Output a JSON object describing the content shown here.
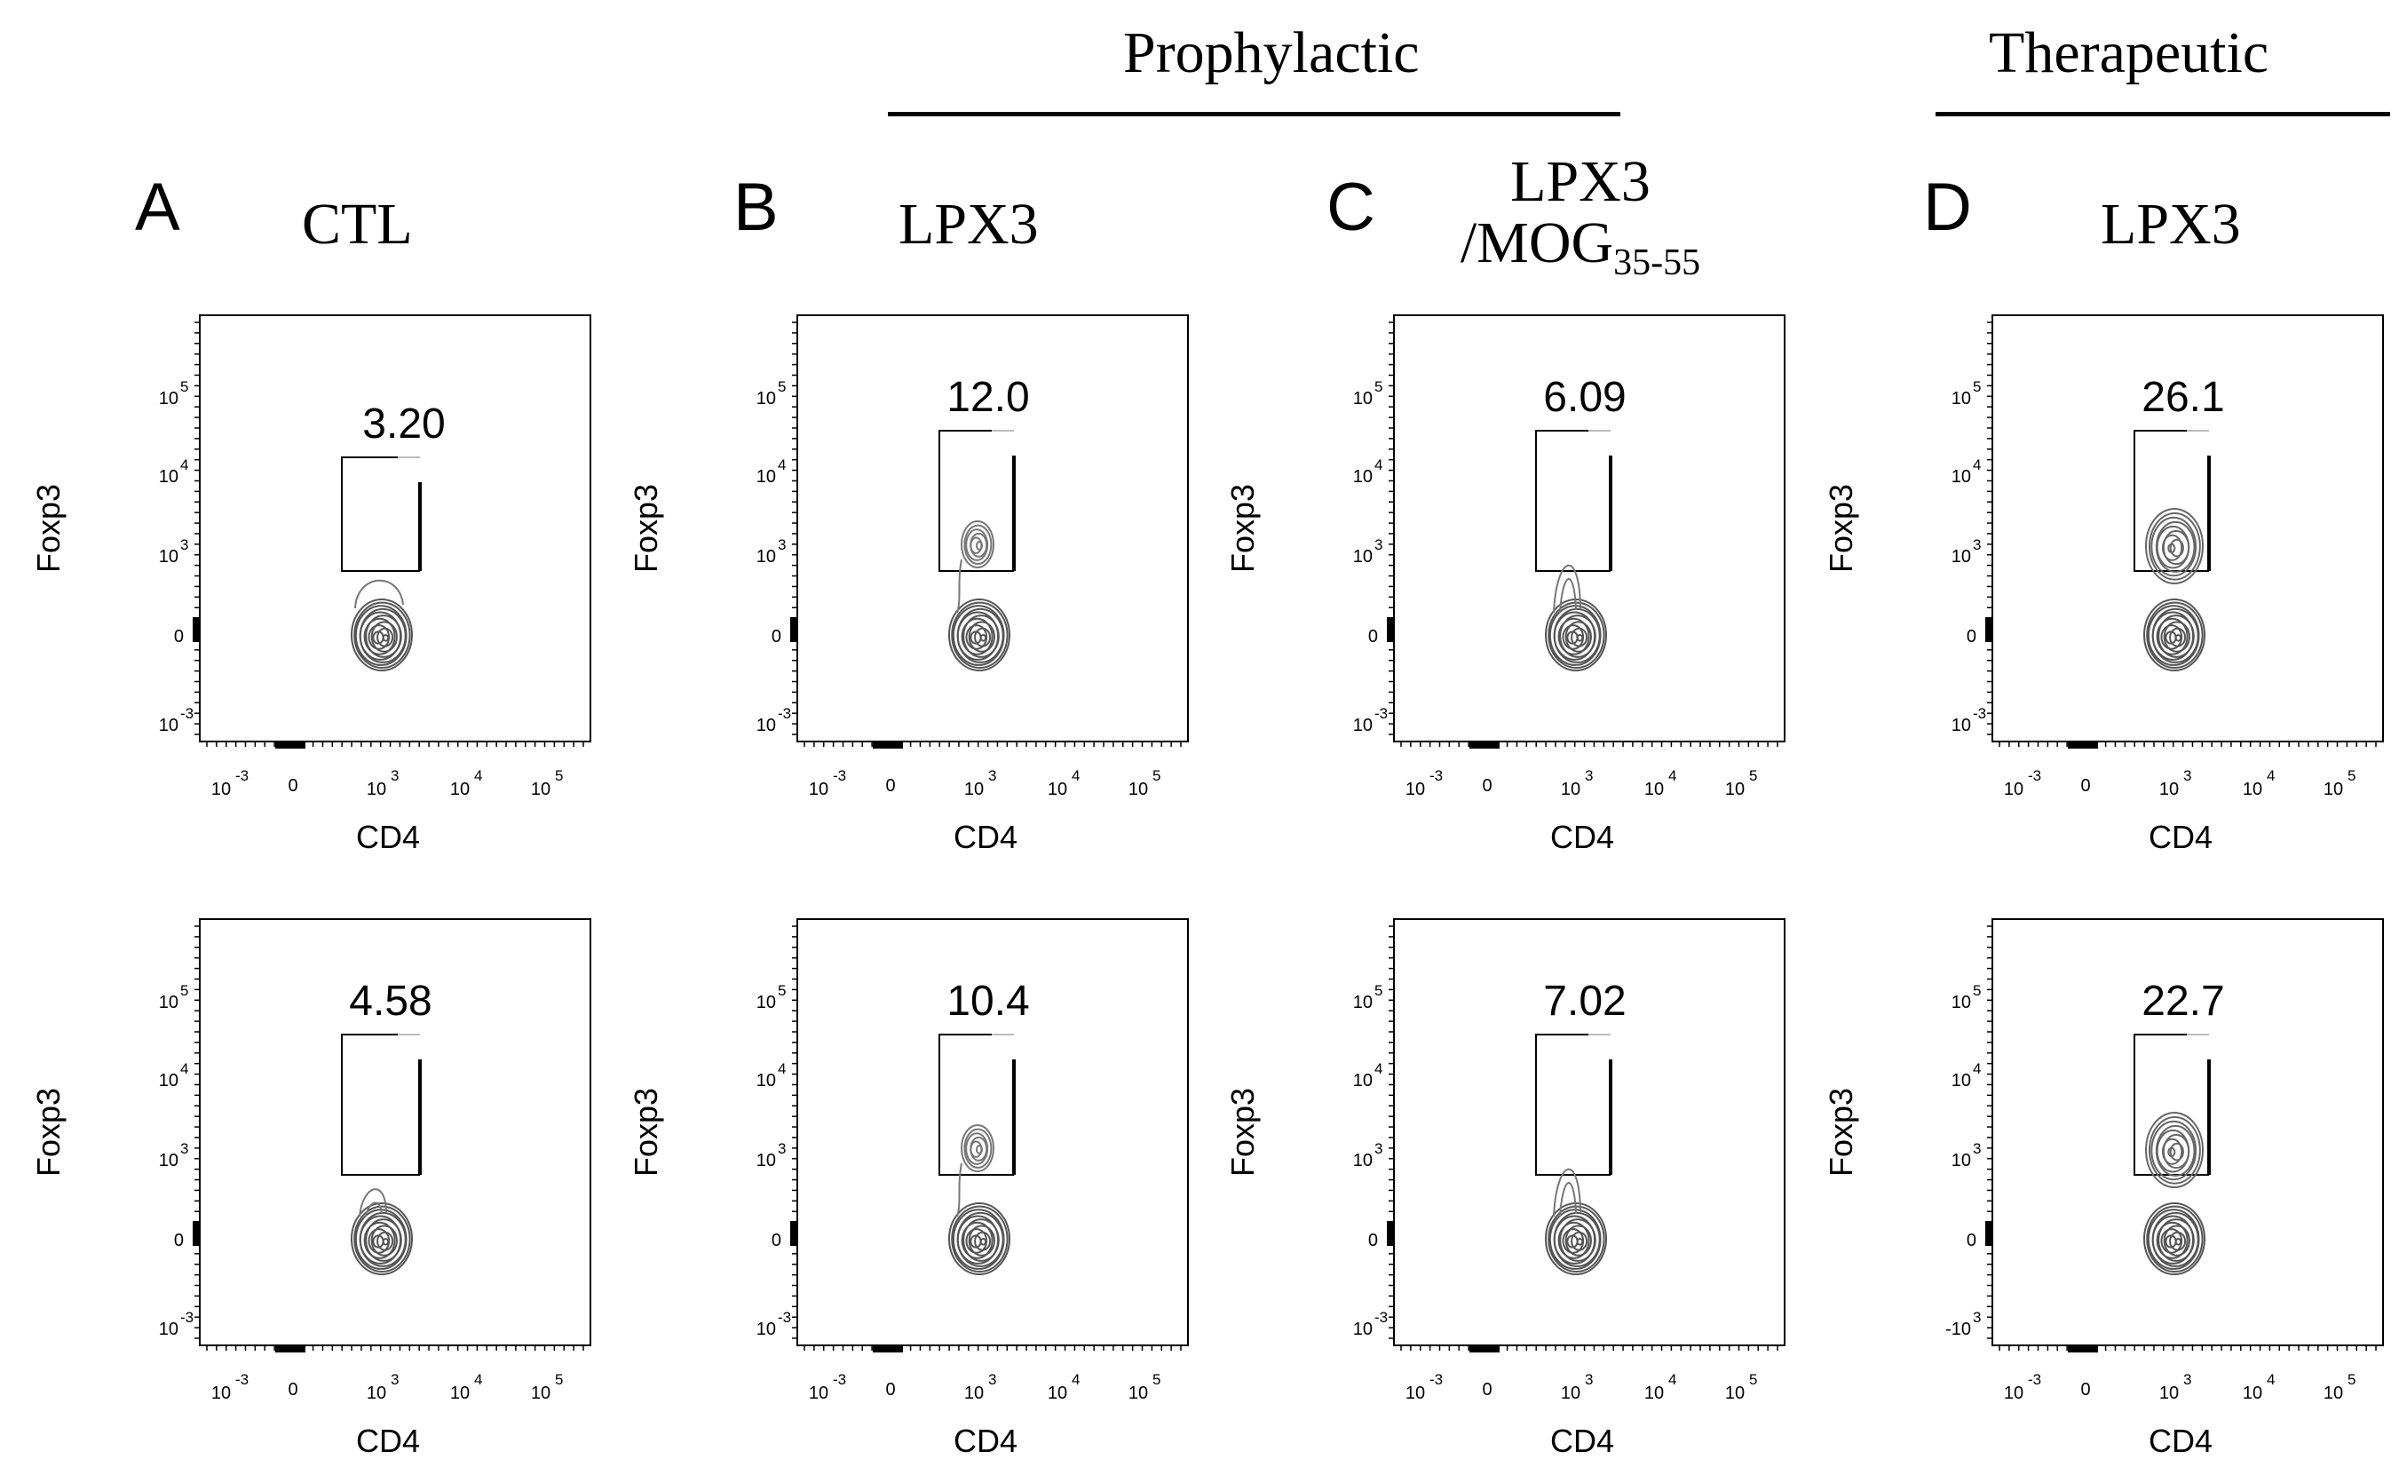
{
  "groups": {
    "prophylactic": "Prophylactic",
    "therapeutic": "Therapeutic"
  },
  "panels": [
    {
      "letter": "A",
      "title": "CTL"
    },
    {
      "letter": "B",
      "title": "LPX3"
    },
    {
      "letter": "C",
      "title_line1": "LPX3",
      "title_line2_prefix": "/MOG",
      "title_line2_sub": "35-55"
    },
    {
      "letter": "D",
      "title": "LPX3"
    }
  ],
  "chart_data": {
    "type": "contour",
    "x_label": "CD4",
    "y_label": "Foxp3",
    "x_ticks": [
      {
        "base": "10",
        "exp": "-3"
      },
      {
        "base": "0",
        "exp": ""
      },
      {
        "base": "10",
        "exp": "3"
      },
      {
        "base": "10",
        "exp": "4"
      },
      {
        "base": "10",
        "exp": "5"
      }
    ],
    "y_ticks": [
      {
        "base": "10",
        "exp": "5"
      },
      {
        "base": "10",
        "exp": "4"
      },
      {
        "base": "10",
        "exp": "3"
      },
      {
        "base": "0",
        "exp": ""
      },
      {
        "base": "10",
        "exp": "-3"
      }
    ],
    "y_ticks_alt": [
      {
        "base": "10",
        "exp": "5"
      },
      {
        "base": "10",
        "exp": "4"
      },
      {
        "base": "10",
        "exp": "3"
      },
      {
        "base": "0",
        "exp": ""
      },
      {
        "base": "-10",
        "exp": "3"
      }
    ],
    "plots": [
      {
        "panel": "A",
        "row": 1,
        "gate_percent": "3.20",
        "cluster": "single"
      },
      {
        "panel": "B",
        "row": 1,
        "gate_percent": "12.0",
        "cluster": "small-upper"
      },
      {
        "panel": "C",
        "row": 1,
        "gate_percent": "6.09",
        "cluster": "tail"
      },
      {
        "panel": "D",
        "row": 1,
        "gate_percent": "26.1",
        "cluster": "large-upper"
      },
      {
        "panel": "A",
        "row": 2,
        "gate_percent": "4.58",
        "cluster": "tail-small"
      },
      {
        "panel": "B",
        "row": 2,
        "gate_percent": "10.4",
        "cluster": "small-upper"
      },
      {
        "panel": "C",
        "row": 2,
        "gate_percent": "7.02",
        "cluster": "tail"
      },
      {
        "panel": "D",
        "row": 2,
        "gate_percent": "22.7",
        "cluster": "large-upper",
        "alt_y_ticks": true
      }
    ]
  }
}
